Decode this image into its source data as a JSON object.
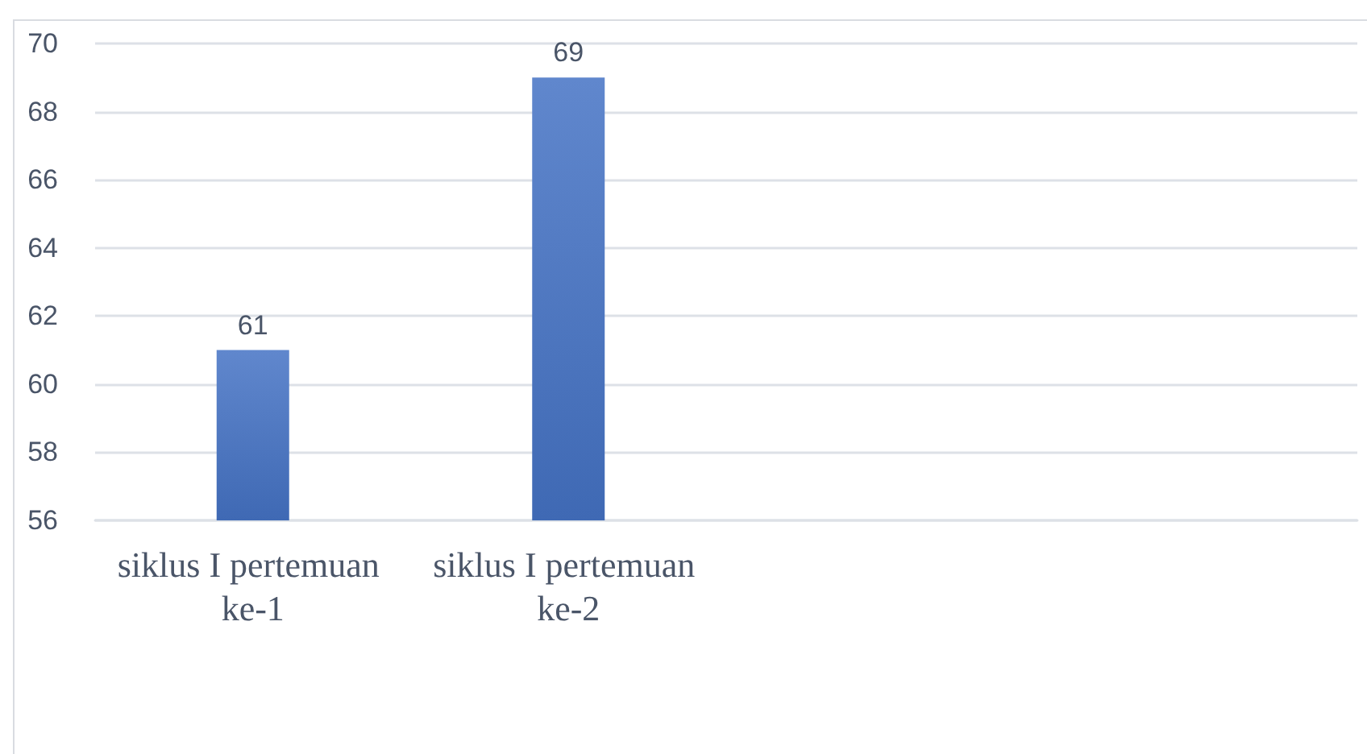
{
  "chart_data": {
    "type": "bar",
    "categories": [
      "siklus I pertemuan ke-1",
      "siklus I pertemuan ke-2",
      null,
      null
    ],
    "values": [
      61,
      69,
      null,
      null
    ],
    "color": "#4472c4",
    "ylim": [
      56,
      70
    ],
    "yticks": [
      56,
      58,
      60,
      62,
      64,
      66,
      68,
      70
    ],
    "grid": "y",
    "data_labels": true
  }
}
